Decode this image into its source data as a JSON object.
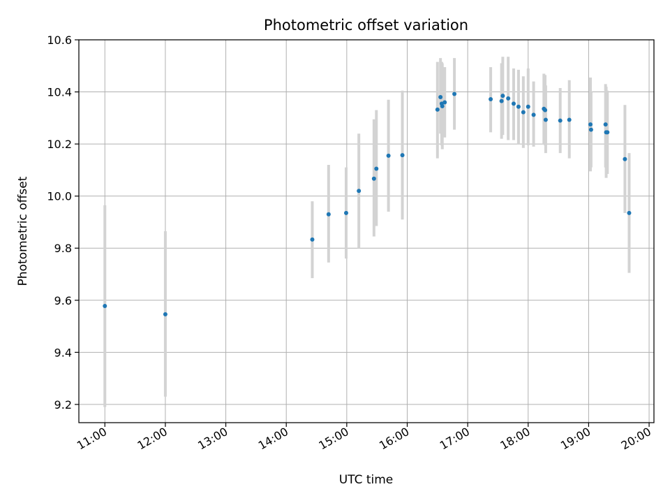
{
  "chart_data": {
    "type": "scatter",
    "title": "Photometric offset variation",
    "xlabel": "UTC time",
    "ylabel": "Photometric offset",
    "x_unit": "hours UTC",
    "xlim": [
      10.57,
      20.08
    ],
    "ylim": [
      9.13,
      10.6
    ],
    "x_ticks": [
      {
        "value": 11,
        "label": "11:00"
      },
      {
        "value": 12,
        "label": "12:00"
      },
      {
        "value": 13,
        "label": "13:00"
      },
      {
        "value": 14,
        "label": "14:00"
      },
      {
        "value": 15,
        "label": "15:00"
      },
      {
        "value": 16,
        "label": "16:00"
      },
      {
        "value": 17,
        "label": "17:00"
      },
      {
        "value": 18,
        "label": "18:00"
      },
      {
        "value": 19,
        "label": "19:00"
      },
      {
        "value": 20,
        "label": "20:00"
      }
    ],
    "y_ticks": [
      {
        "value": 9.2,
        "label": "9.2"
      },
      {
        "value": 9.4,
        "label": "9.4"
      },
      {
        "value": 9.6,
        "label": "9.6"
      },
      {
        "value": 9.8,
        "label": "9.8"
      },
      {
        "value": 10.0,
        "label": "10.0"
      },
      {
        "value": 10.2,
        "label": "10.2"
      },
      {
        "value": 10.4,
        "label": "10.4"
      },
      {
        "value": 10.6,
        "label": "10.6"
      }
    ],
    "grid": true,
    "marker_color": "#1f77b4",
    "errorbar_color": "#d3d3d3",
    "points": [
      {
        "x": 11.0,
        "y": 9.578,
        "err_low": 9.19,
        "err_high": 9.965
      },
      {
        "x": 12.0,
        "y": 9.546,
        "err_low": 9.23,
        "err_high": 9.865
      },
      {
        "x": 14.43,
        "y": 9.833,
        "err_low": 9.685,
        "err_high": 9.98
      },
      {
        "x": 14.7,
        "y": 9.93,
        "err_low": 9.745,
        "err_high": 10.12
      },
      {
        "x": 14.99,
        "y": 9.935,
        "err_low": 9.76,
        "err_high": 10.11
      },
      {
        "x": 15.2,
        "y": 10.02,
        "err_low": 9.8,
        "err_high": 10.24
      },
      {
        "x": 15.45,
        "y": 10.067,
        "err_low": 9.845,
        "err_high": 10.295
      },
      {
        "x": 15.49,
        "y": 10.105,
        "err_low": 9.885,
        "err_high": 10.33
      },
      {
        "x": 15.69,
        "y": 10.155,
        "err_low": 9.94,
        "err_high": 10.37
      },
      {
        "x": 15.92,
        "y": 10.157,
        "err_low": 9.91,
        "err_high": 10.405
      },
      {
        "x": 16.5,
        "y": 10.332,
        "err_low": 10.145,
        "err_high": 10.515
      },
      {
        "x": 16.55,
        "y": 10.38,
        "err_low": 10.24,
        "err_high": 10.53
      },
      {
        "x": 16.57,
        "y": 10.355,
        "err_low": 10.195,
        "err_high": 10.515
      },
      {
        "x": 16.58,
        "y": 10.345,
        "err_low": 10.18,
        "err_high": 10.51
      },
      {
        "x": 16.62,
        "y": 10.36,
        "err_low": 10.225,
        "err_high": 10.495
      },
      {
        "x": 16.78,
        "y": 10.392,
        "err_low": 10.255,
        "err_high": 10.53
      },
      {
        "x": 17.38,
        "y": 10.372,
        "err_low": 10.245,
        "err_high": 10.495
      },
      {
        "x": 17.56,
        "y": 10.365,
        "err_low": 10.22,
        "err_high": 10.51
      },
      {
        "x": 17.58,
        "y": 10.385,
        "err_low": 10.235,
        "err_high": 10.535
      },
      {
        "x": 17.67,
        "y": 10.375,
        "err_low": 10.215,
        "err_high": 10.535
      },
      {
        "x": 17.76,
        "y": 10.355,
        "err_low": 10.215,
        "err_high": 10.49
      },
      {
        "x": 17.84,
        "y": 10.343,
        "err_low": 10.2,
        "err_high": 10.485
      },
      {
        "x": 17.92,
        "y": 10.322,
        "err_low": 10.185,
        "err_high": 10.46
      },
      {
        "x": 18.0,
        "y": 10.343,
        "err_low": 10.195,
        "err_high": 10.49
      },
      {
        "x": 18.09,
        "y": 10.312,
        "err_low": 10.19,
        "err_high": 10.44
      },
      {
        "x": 18.26,
        "y": 10.335,
        "err_low": 10.2,
        "err_high": 10.47
      },
      {
        "x": 18.28,
        "y": 10.33,
        "err_low": 10.195,
        "err_high": 10.465
      },
      {
        "x": 18.29,
        "y": 10.293,
        "err_low": 10.165,
        "err_high": 10.425
      },
      {
        "x": 18.53,
        "y": 10.29,
        "err_low": 10.165,
        "err_high": 10.415
      },
      {
        "x": 18.68,
        "y": 10.293,
        "err_low": 10.145,
        "err_high": 10.445
      },
      {
        "x": 19.03,
        "y": 10.275,
        "err_low": 10.095,
        "err_high": 10.455
      },
      {
        "x": 19.04,
        "y": 10.255,
        "err_low": 10.11,
        "err_high": 10.4
      },
      {
        "x": 19.28,
        "y": 10.275,
        "err_low": 10.11,
        "err_high": 10.43
      },
      {
        "x": 19.29,
        "y": 10.245,
        "err_low": 10.07,
        "err_high": 10.42
      },
      {
        "x": 19.31,
        "y": 10.245,
        "err_low": 10.085,
        "err_high": 10.405
      },
      {
        "x": 19.6,
        "y": 10.142,
        "err_low": 9.935,
        "err_high": 10.35
      },
      {
        "x": 19.67,
        "y": 9.935,
        "err_low": 9.705,
        "err_high": 10.165
      }
    ]
  }
}
